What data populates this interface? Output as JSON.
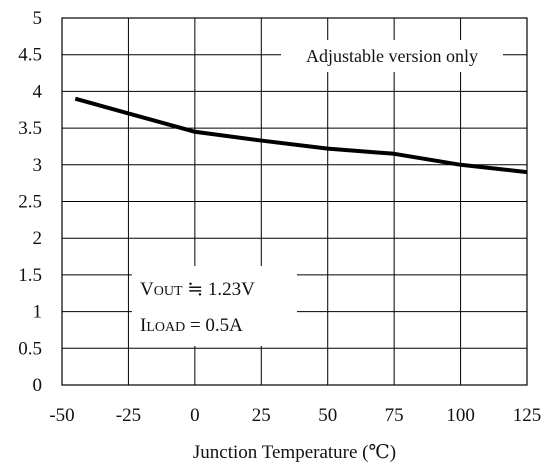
{
  "chart_data": {
    "type": "line",
    "title": "",
    "xlabel": "Junction Temperature (℃)",
    "ylabel": "",
    "xlim": [
      -50,
      125
    ],
    "ylim": [
      0,
      5
    ],
    "xticks": [
      -50,
      -25,
      0,
      25,
      50,
      75,
      100,
      125
    ],
    "yticks": [
      0,
      0.5,
      1,
      1.5,
      2,
      2.5,
      3,
      3.5,
      4,
      4.5,
      5
    ],
    "xtick_labels": [
      "-50",
      "-25",
      "0",
      "25",
      "50",
      "75",
      "100",
      "125"
    ],
    "ytick_labels": [
      "0",
      "0.5",
      "1",
      "1.5",
      "2",
      "2.5",
      "3",
      "3.5",
      "4",
      "4.5",
      "5"
    ],
    "grid": true,
    "series": [
      {
        "x": [
          -45,
          -25,
          0,
          25,
          50,
          75,
          100,
          125
        ],
        "y": [
          3.9,
          3.7,
          3.45,
          3.33,
          3.22,
          3.15,
          3.0,
          2.9
        ]
      }
    ],
    "annotations": {
      "note": "Adjustable version only",
      "vout_label": "V",
      "vout_sub": "OUT",
      "vout_value": " ≒ 1.23V",
      "iload_label": "I",
      "iload_sub": "LOAD",
      "iload_value": " = 0.5A"
    },
    "colors": {
      "line": "#000000",
      "grid": "#000000",
      "background": "#ffffff"
    }
  }
}
